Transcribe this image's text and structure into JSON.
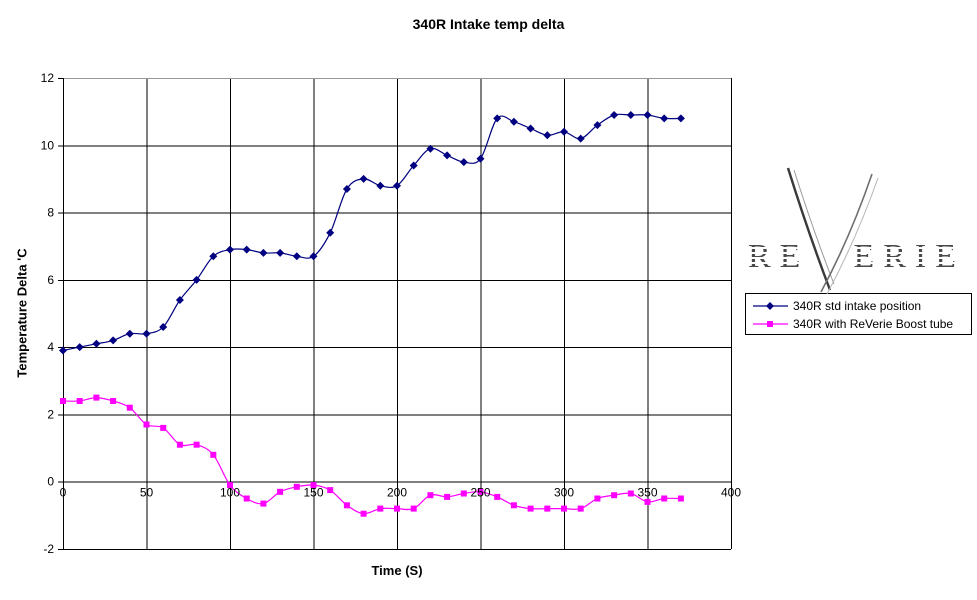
{
  "title": "340R Intake temp delta",
  "logo": {
    "word": "REVERIE",
    "left": "RE",
    "right": "ERIE"
  },
  "colors": {
    "series1": "#000080",
    "series2": "#FF00FF",
    "gridline": "#000000",
    "plot_top_border": "#999999",
    "background": "#FFFFFF",
    "text": "#000000"
  },
  "chart_data": {
    "type": "line",
    "title": "340R Intake temp delta",
    "xlabel": "Time (S)",
    "ylabel": "Temperature Delta 'C",
    "xlim": [
      0,
      400
    ],
    "ylim": [
      -2,
      12
    ],
    "x_ticks": [
      0,
      50,
      100,
      150,
      200,
      250,
      300,
      350,
      400
    ],
    "y_ticks": [
      -2,
      0,
      2,
      4,
      6,
      8,
      10,
      12
    ],
    "grid": true,
    "smoothed": true,
    "legend_position": "right",
    "x": [
      0,
      10,
      20,
      30,
      40,
      50,
      60,
      70,
      80,
      90,
      100,
      110,
      120,
      130,
      140,
      150,
      160,
      170,
      180,
      190,
      200,
      210,
      220,
      230,
      240,
      250,
      260,
      270,
      280,
      290,
      300,
      310,
      320,
      330,
      340,
      350,
      360,
      370
    ],
    "series": [
      {
        "name": "340R std intake position",
        "color": "#000080",
        "marker": "diamond",
        "values": [
          3.9,
          4.0,
          4.1,
          4.2,
          4.4,
          4.4,
          4.6,
          5.4,
          6.0,
          6.7,
          6.9,
          6.9,
          6.8,
          6.8,
          6.7,
          6.7,
          7.4,
          8.7,
          9.0,
          8.8,
          8.8,
          9.4,
          9.9,
          9.7,
          9.5,
          9.6,
          10.8,
          10.7,
          10.5,
          10.3,
          10.4,
          10.2,
          10.6,
          10.9,
          10.9,
          10.9,
          10.8,
          10.8
        ]
      },
      {
        "name": "340R with ReVerie Boost tube",
        "color": "#FF00FF",
        "marker": "square",
        "values": [
          2.4,
          2.4,
          2.5,
          2.4,
          2.2,
          1.7,
          1.6,
          1.1,
          1.1,
          0.8,
          -0.1,
          -0.5,
          -0.65,
          -0.3,
          -0.15,
          -0.1,
          -0.25,
          -0.7,
          -0.95,
          -0.8,
          -0.8,
          -0.8,
          -0.4,
          -0.45,
          -0.35,
          -0.3,
          -0.45,
          -0.7,
          -0.8,
          -0.8,
          -0.8,
          -0.8,
          -0.5,
          -0.4,
          -0.35,
          -0.6,
          -0.5,
          -0.5
        ]
      }
    ]
  }
}
